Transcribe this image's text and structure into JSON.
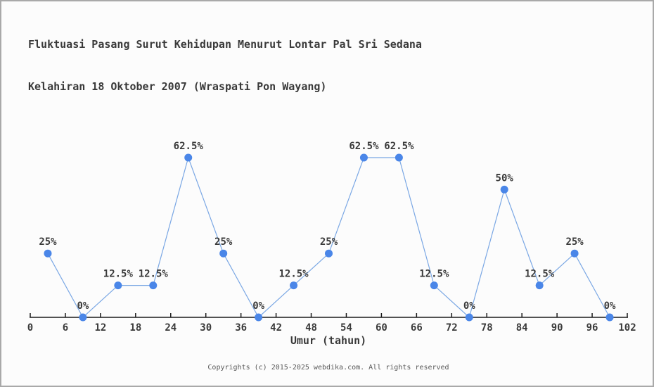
{
  "title_line1": "Fluktuasi Pasang Surut Kehidupan Menurut Lontar Pal Sri Sedana",
  "title_line2": "Kelahiran 18 Oktober 2007 (Wraspati Pon Wayang)",
  "footer": "Copyrights (c) 2015-2025 webdika.com. All rights reserved",
  "colors": {
    "marker": "#4a86e8",
    "line": "#7aa7e4",
    "axis": "#1a1a1a",
    "text": "#3a3a3a",
    "footer_text": "#585858",
    "background": "#fcfcfc",
    "border": "#a9a9a9"
  },
  "chart_data": {
    "type": "line",
    "x": [
      3,
      9,
      15,
      21,
      27,
      33,
      39,
      45,
      51,
      57,
      63,
      69,
      75,
      81,
      87,
      93,
      99
    ],
    "values": [
      25,
      0,
      12.5,
      12.5,
      62.5,
      25,
      0,
      12.5,
      25,
      62.5,
      62.5,
      12.5,
      0,
      50,
      12.5,
      25,
      0
    ],
    "point_labels": [
      "25%",
      "0%",
      "12.5%",
      "12.5%",
      "62.5%",
      "25%",
      "0%",
      "12.5%",
      "25%",
      "62.5%",
      "62.5%",
      "12.5%",
      "0%",
      "50%",
      "12.5%",
      "25%",
      "0%"
    ],
    "title": "Fluktuasi Pasang Surut Kehidupan Menurut Lontar Pal Sri Sedana Kelahiran 18 Oktober 2007 (Wraspati Pon Wayang)",
    "xlabel": "Umur (tahun)",
    "ylabel": "",
    "x_ticks": [
      0,
      6,
      12,
      18,
      24,
      30,
      36,
      42,
      48,
      54,
      60,
      66,
      72,
      78,
      84,
      90,
      96,
      102
    ],
    "xlim": [
      0,
      102
    ],
    "ylim": [
      0,
      100
    ],
    "grid": false,
    "legend": false
  }
}
